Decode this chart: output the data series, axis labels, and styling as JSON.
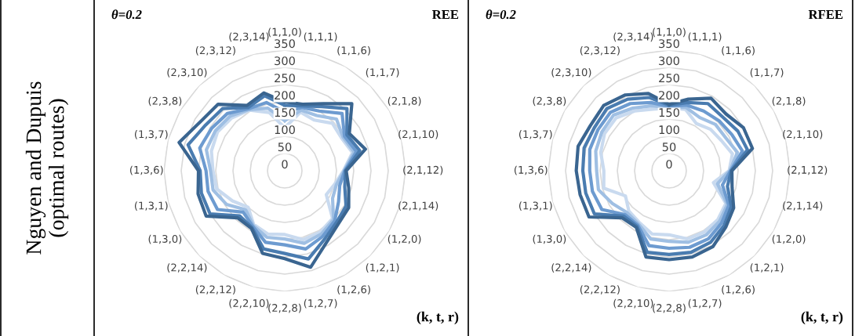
{
  "chart_data": [
    {
      "type": "radar",
      "title": "θ=0.2",
      "subtitle": "REE",
      "xlabel": "(k, t, r)",
      "annotations": [
        "Nguyen and Dupuis\n(optimal routes)"
      ],
      "categories": [
        "(1,1,0)",
        "(1,1,1)",
        "(1,1,6)",
        "(1,1,7)",
        "(2,1,8)",
        "(2,1,10)",
        "(2,1,12)",
        "(2,1,14)",
        "(1,2,0)",
        "(1,2,1)",
        "(1,2,6)",
        "(1,2,7)",
        "(2,2,8)",
        "(2,2,10)",
        "(2,2,12)",
        "(2,2,14)",
        "(1,3,0)",
        "(1,3,1)",
        "(1,3,6)",
        "(1,3,7)",
        "(2,3,8)",
        "(2,3,10)",
        "(2,3,12)",
        "(2,3,14)"
      ],
      "ylim": [
        0,
        350
      ],
      "yticks": [
        0,
        50,
        100,
        150,
        200,
        250,
        300,
        350
      ],
      "grid": true,
      "marker": "none",
      "series": [
        {
          "color": "#3a6590",
          "values": [
            200,
            200,
            225,
            275,
            216,
            242,
            178,
            192,
            214,
            219,
            241,
            290,
            255,
            248,
            193,
            193,
            263,
            260,
            250,
            317,
            283,
            273,
            219,
            234
          ]
        },
        {
          "color": "#4a7cb0",
          "values": [
            190,
            195,
            215,
            255,
            208,
            225,
            176,
            180,
            205,
            212,
            230,
            265,
            240,
            235,
            190,
            185,
            250,
            250,
            245,
            290,
            265,
            255,
            212,
            225
          ]
        },
        {
          "color": "#6d9bd0",
          "values": [
            170,
            190,
            200,
            235,
            200,
            215,
            174,
            165,
            180,
            205,
            220,
            235,
            215,
            215,
            186,
            170,
            225,
            230,
            228,
            255,
            245,
            235,
            208,
            205
          ]
        },
        {
          "color": "#9fbfe3",
          "values": [
            145,
            182,
            185,
            212,
            195,
            208,
            172,
            155,
            160,
            200,
            212,
            218,
            198,
            200,
            183,
            160,
            195,
            215,
            215,
            235,
            232,
            224,
            205,
            188
          ]
        },
        {
          "color": "#c9daef",
          "values": [
            125,
            176,
            170,
            195,
            190,
            203,
            170,
            150,
            139,
            196,
            206,
            207,
            185,
            190,
            180,
            150,
            175,
            204,
            208,
            220,
            225,
            217,
            203,
            175
          ]
        }
      ]
    },
    {
      "type": "radar",
      "title": "θ=0.2",
      "subtitle": "RFEE",
      "xlabel": "(k, t, r)",
      "categories": [
        "(1,1,0)",
        "(1,1,1)",
        "(1,1,6)",
        "(1,1,7)",
        "(2,1,8)",
        "(2,1,10)",
        "(2,1,12)",
        "(2,1,14)",
        "(1,2,0)",
        "(1,2,1)",
        "(1,2,6)",
        "(1,2,7)",
        "(2,2,8)",
        "(2,2,10)",
        "(2,2,12)",
        "(2,2,14)",
        "(1,3,0)",
        "(1,3,1)",
        "(1,3,6)",
        "(1,3,7)",
        "(2,3,8)",
        "(2,3,10)",
        "(2,3,12)",
        "(2,3,14)"
      ],
      "ylim": [
        0,
        350
      ],
      "yticks": [
        0,
        50,
        100,
        150,
        200,
        250,
        300,
        350
      ],
      "grid": true,
      "marker": "none",
      "series": [
        {
          "color": "#3a6590",
          "values": [
            193,
            215,
            243,
            233,
            249,
            250,
            182,
            189,
            216,
            232,
            254,
            259,
            258,
            259,
            190,
            193,
            268,
            267,
            269,
            273,
            263,
            268,
            254,
            232
          ]
        },
        {
          "color": "#4a7cb0",
          "values": [
            190,
            205,
            225,
            220,
            230,
            235,
            180,
            175,
            208,
            225,
            240,
            245,
            243,
            245,
            186,
            186,
            250,
            250,
            250,
            255,
            250,
            255,
            240,
            220
          ]
        },
        {
          "color": "#6d9bd0",
          "values": [
            187,
            197,
            200,
            205,
            210,
            220,
            178,
            160,
            200,
            215,
            228,
            230,
            225,
            225,
            182,
            180,
            225,
            230,
            230,
            238,
            238,
            240,
            225,
            205
          ]
        },
        {
          "color": "#9fbfe3",
          "values": [
            184,
            190,
            178,
            190,
            190,
            205,
            176,
            145,
            195,
            207,
            215,
            215,
            205,
            205,
            178,
            172,
            190,
            212,
            210,
            220,
            225,
            228,
            210,
            195
          ]
        },
        {
          "color": "#c9daef",
          "values": [
            182,
            184,
            158,
            170,
            175,
            190,
            174,
            133,
            190,
            200,
            205,
            205,
            186,
            190,
            173,
            165,
            146,
            196,
            189,
            205,
            216,
            217,
            200,
            185
          ]
        }
      ]
    }
  ]
}
